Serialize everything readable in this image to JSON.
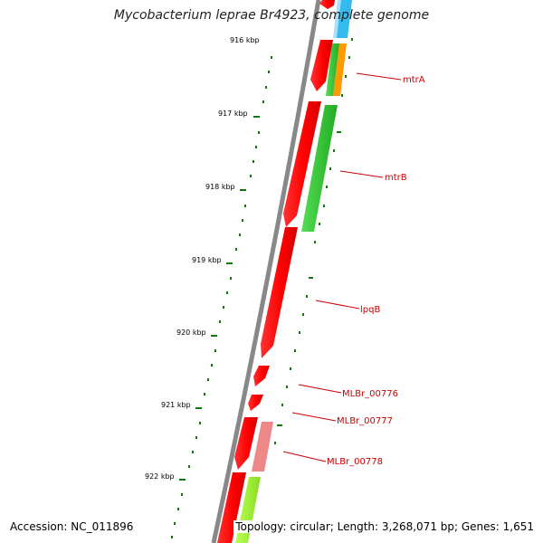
{
  "title": "Mycobacterium leprae Br4923, complete genome",
  "footer": {
    "accession": "Accession: NC_011896",
    "summary": "Topology: circular; Length: 3,268,071 bp; Genes: 1,651"
  },
  "ticks": [
    "916 kbp",
    "917 kbp",
    "918 kbp",
    "919 kbp",
    "920 kbp",
    "921 kbp",
    "922 kbp"
  ],
  "genes": [
    "mtrA",
    "mtrB",
    "lpqB",
    "MLBr_00776",
    "MLBr_00777",
    "MLBr_00778"
  ],
  "colors": {
    "backbone": "#808080",
    "forward_cds": "#ff0000",
    "cog_green": "#33cc33",
    "cog_orange": "#ff9900",
    "cog_blue": "#33bbee",
    "cog_pink": "#ee8888",
    "cog_lime": "#99ee33",
    "dots": "#117711",
    "label": "#cc0000"
  }
}
